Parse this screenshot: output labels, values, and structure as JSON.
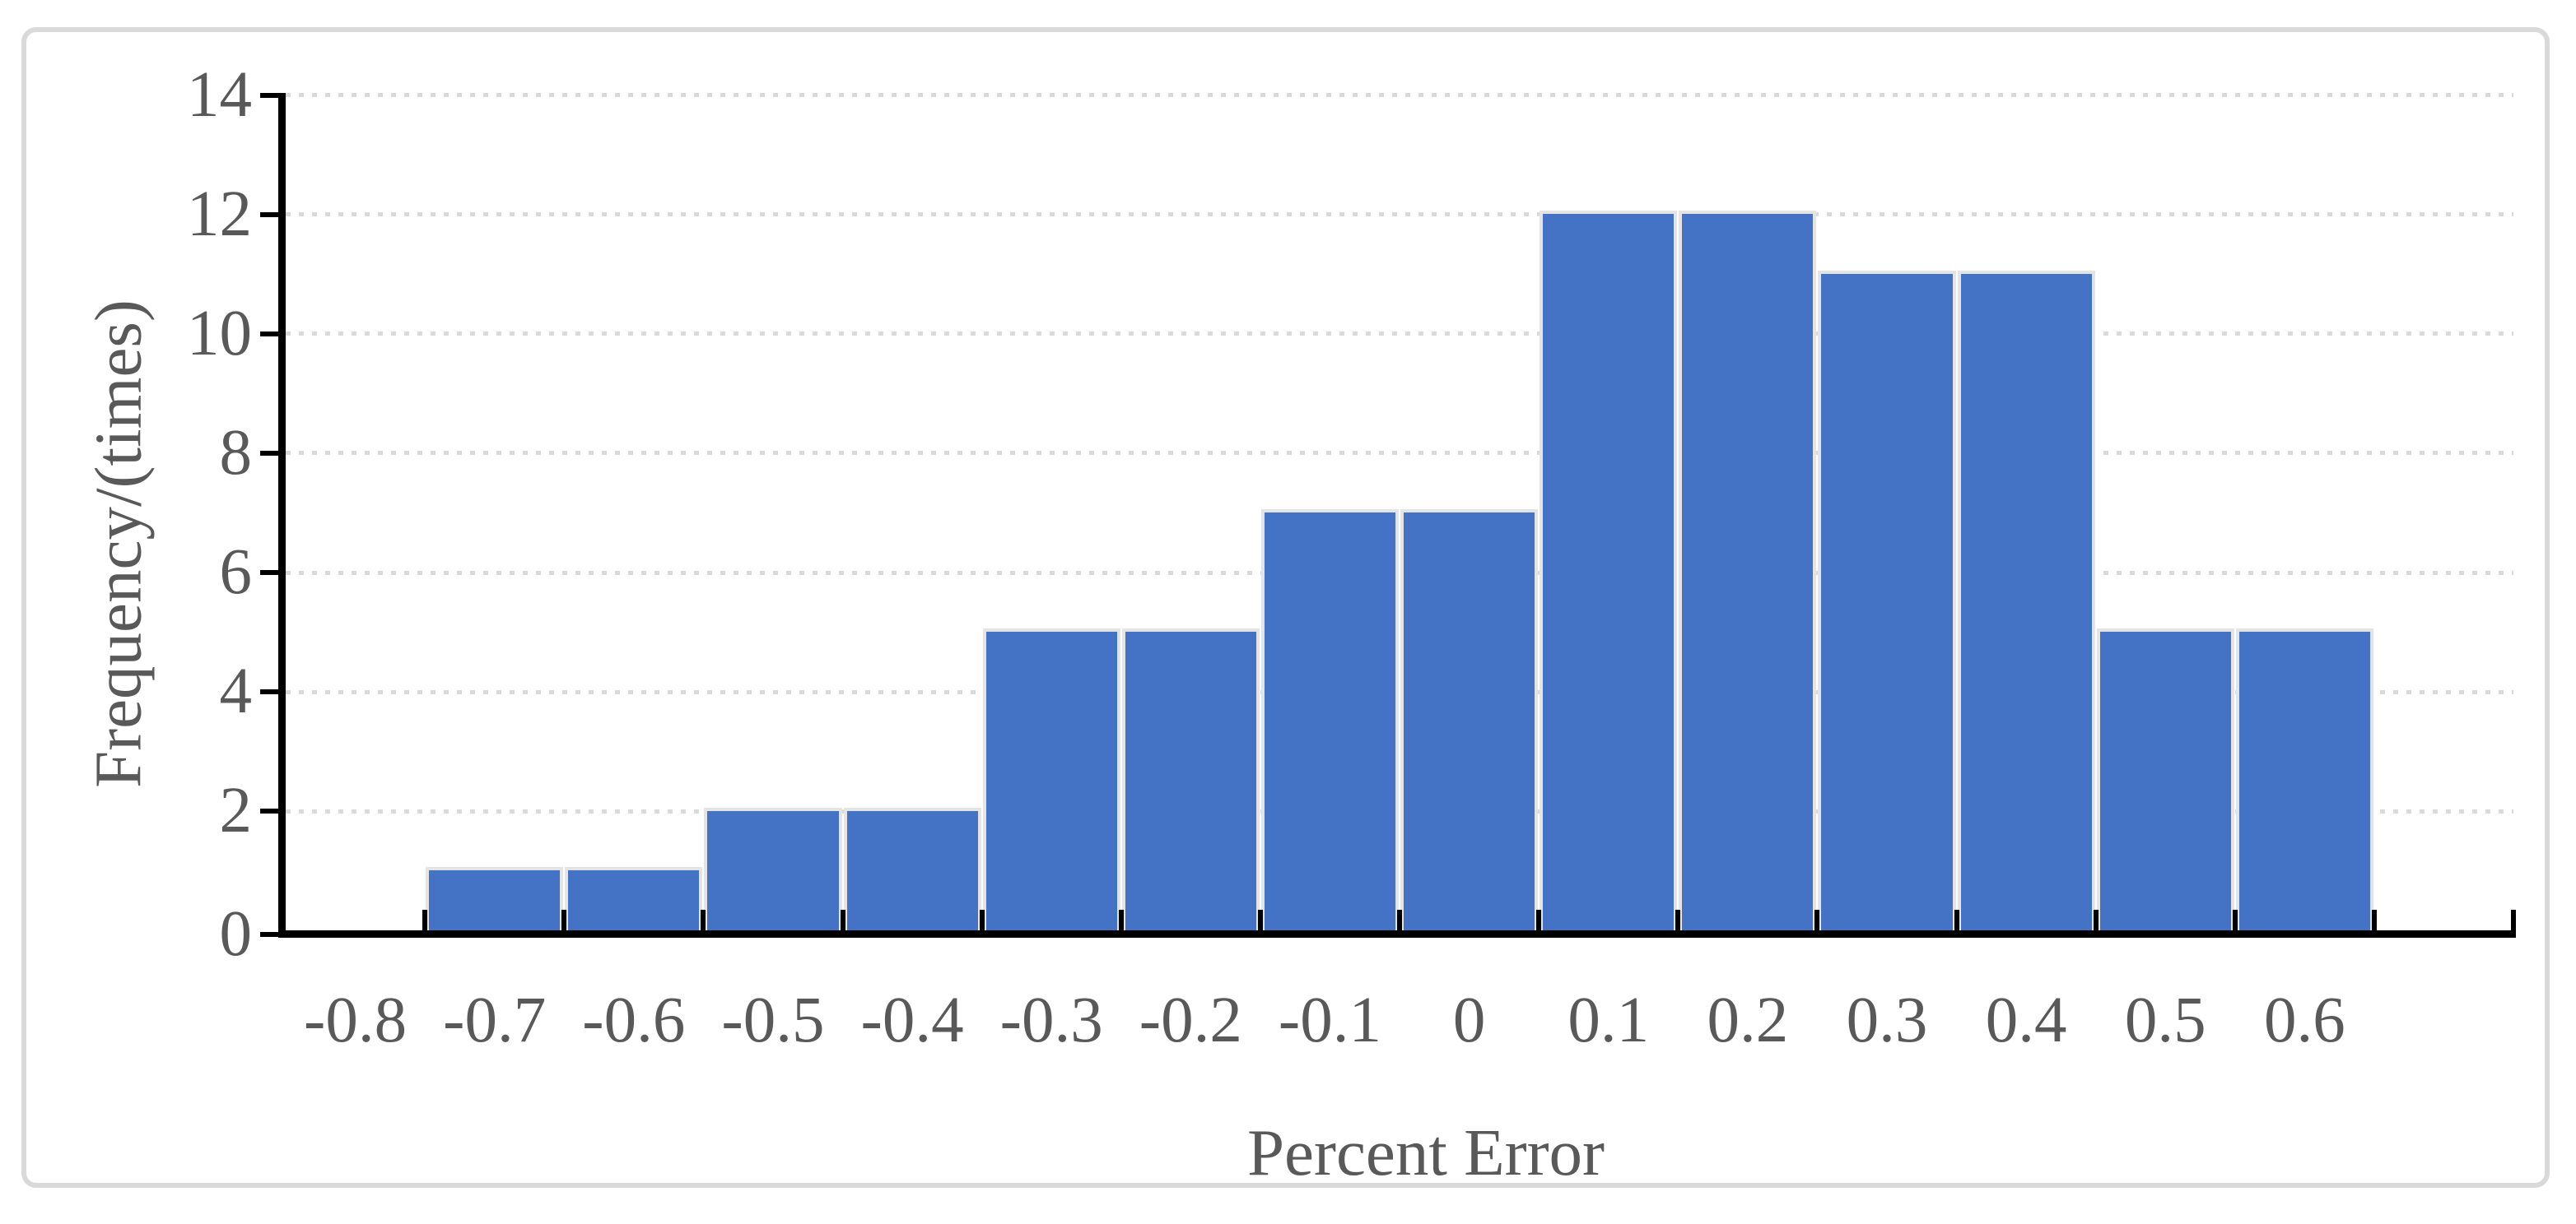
{
  "chart_data": {
    "type": "bar",
    "subtype": "histogram",
    "title": "",
    "xlabel": "Percent Error",
    "ylabel": "Frequency/(times)",
    "categories": [
      "-0.8",
      "-0.7",
      "-0.6",
      "-0.5",
      "-0.4",
      "-0.3",
      "-0.2",
      "-0.1",
      "0",
      "0.1",
      "0.2",
      "0.3",
      "0.4",
      "0.5",
      "0.6"
    ],
    "values": [
      0,
      1,
      1,
      2,
      2,
      5,
      5,
      7,
      7,
      12,
      12,
      11,
      11,
      5,
      5
    ],
    "ylim": [
      0,
      14
    ],
    "ytick_step": 2,
    "ytick_labels": [
      "0",
      "2",
      "4",
      "6",
      "8",
      "10",
      "12",
      "14"
    ],
    "trailing_empty_category": true,
    "grid": "horizontal-dotted",
    "legend": "none",
    "colors": {
      "bar_fill": "#4472C4",
      "bar_outline": "#E4E4E4",
      "axis_line": "#000000",
      "gridline": "#D9D9D9",
      "text": "#595959",
      "chart_border": "#D9D9D9",
      "background": "#FFFFFF"
    }
  }
}
